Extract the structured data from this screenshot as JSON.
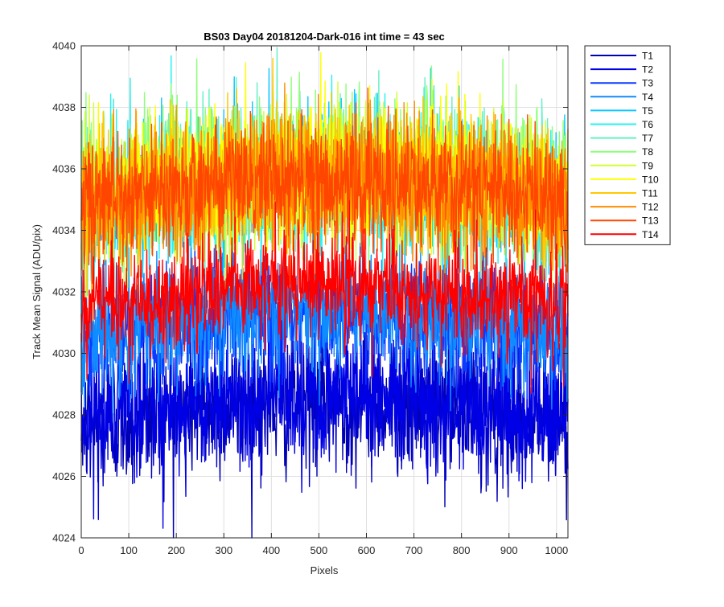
{
  "chart_data": {
    "type": "line",
    "title": "BS03 Day04 20181204-Dark-016 int time = 43 sec",
    "xlabel": "Pixels",
    "ylabel": "Track Mean Signal (ADU/pix)",
    "xlim": [
      0,
      1024
    ],
    "ylim": [
      4024,
      4040
    ],
    "xticks": [
      0,
      100,
      200,
      300,
      400,
      500,
      600,
      700,
      800,
      900,
      1000
    ],
    "yticks": [
      4024,
      4026,
      4028,
      4030,
      4032,
      4034,
      4036,
      4038,
      4040
    ],
    "grid": true,
    "legend_position": "outside-right-top",
    "series": [
      {
        "name": "T1",
        "color": "#0000b4",
        "mean": 4028.0,
        "noise": 1.1
      },
      {
        "name": "T2",
        "color": "#0000e6",
        "mean": 4028.3,
        "noise": 1.1
      },
      {
        "name": "T3",
        "color": "#0a3cff",
        "mean": 4030.8,
        "noise": 1.0
      },
      {
        "name": "T4",
        "color": "#0f8cff",
        "mean": 4031.0,
        "noise": 1.0
      },
      {
        "name": "T5",
        "color": "#0fc8ff",
        "mean": 4035.2,
        "noise": 1.1
      },
      {
        "name": "T6",
        "color": "#28f0f0",
        "mean": 4035.2,
        "noise": 1.1
      },
      {
        "name": "T7",
        "color": "#64f0c8",
        "mean": 4035.4,
        "noise": 1.1
      },
      {
        "name": "T8",
        "color": "#8cff78",
        "mean": 4035.6,
        "noise": 1.2
      },
      {
        "name": "T9",
        "color": "#d2ff32",
        "mean": 4035.5,
        "noise": 1.1
      },
      {
        "name": "T10",
        "color": "#ffff00",
        "mean": 4035.5,
        "noise": 1.1
      },
      {
        "name": "T11",
        "color": "#ffc800",
        "mean": 4035.4,
        "noise": 1.1
      },
      {
        "name": "T12",
        "color": "#ff8c00",
        "mean": 4035.3,
        "noise": 1.1
      },
      {
        "name": "T13",
        "color": "#ff4600",
        "mean": 4035.2,
        "noise": 1.0
      },
      {
        "name": "T14",
        "color": "#ff0000",
        "mean": 4031.8,
        "noise": 0.9
      }
    ]
  }
}
